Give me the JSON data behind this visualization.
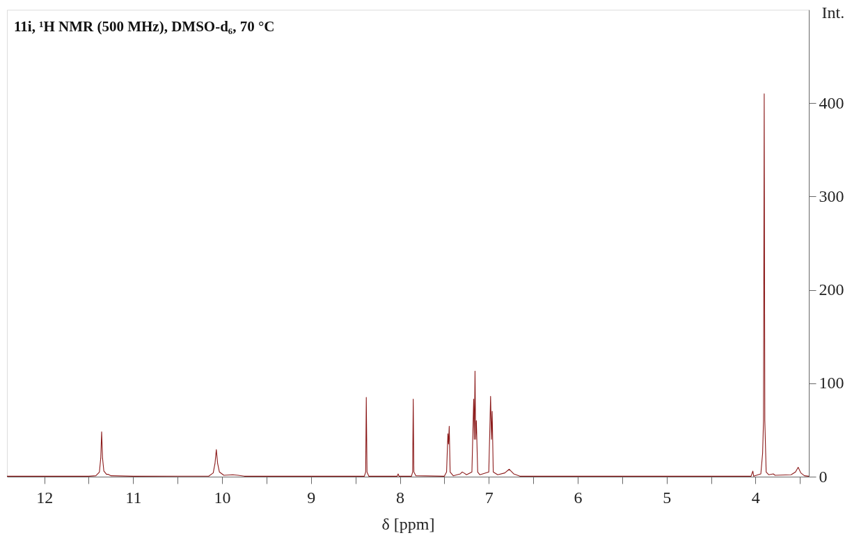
{
  "chart_data": {
    "type": "line",
    "title": "11i, ¹H NMR (500 MHz), DMSO-d₆, 70 °C",
    "xlabel": "δ [ppm]",
    "ylabel": "Int.",
    "xlim": [
      12.42,
      3.4
    ],
    "ylim": [
      0,
      500
    ],
    "xticks": [
      12,
      {
        "value": 11.5,
        "label": null
      },
      11,
      {
        "value": 10.5,
        "label": null
      },
      10,
      {
        "value": 9.5,
        "label": null
      },
      9,
      {
        "value": 8.5,
        "label": null
      },
      8,
      {
        "value": 7.5,
        "label": null
      },
      7,
      {
        "value": 6.5,
        "label": null
      },
      6,
      {
        "value": 5.5,
        "label": null
      },
      5,
      {
        "value": 4.5,
        "label": null
      },
      4,
      {
        "value": 3.5,
        "label": null
      }
    ],
    "yticks": [
      0,
      100,
      200,
      300,
      400
    ],
    "grid": false,
    "marker": "none",
    "line_style": "solid",
    "series": [
      {
        "color": "#8b1a1a",
        "x": [
          12.42,
          11.5,
          11.42,
          11.38,
          11.365,
          11.355,
          11.345,
          11.33,
          11.3,
          11.28,
          11.25,
          11.0,
          10.15,
          10.1,
          10.08,
          10.065,
          10.05,
          10.03,
          9.98,
          9.88,
          9.82,
          9.75,
          8.4,
          8.385,
          8.378,
          8.37,
          8.35,
          8.03,
          8.02,
          8.01,
          7.87,
          7.857,
          7.85,
          7.843,
          7.82,
          7.5,
          7.475,
          7.46,
          7.453,
          7.445,
          7.435,
          7.4,
          7.32,
          7.3,
          7.28,
          7.25,
          7.19,
          7.17,
          7.163,
          7.155,
          7.148,
          7.14,
          7.125,
          7.1,
          7.0,
          6.98,
          6.97,
          6.962,
          6.95,
          6.9,
          6.82,
          6.77,
          6.72,
          6.65,
          4.05,
          4.03,
          4.02,
          3.94,
          3.92,
          3.91,
          3.902,
          3.895,
          3.88,
          3.85,
          3.8,
          3.78,
          3.6,
          3.55,
          3.52,
          3.49,
          3.45,
          3.4
        ],
        "values": [
          0.5,
          0.5,
          1,
          5,
          20,
          48,
          20,
          6,
          2.5,
          2.5,
          1,
          0.5,
          0.6,
          4,
          14,
          29,
          14,
          5,
          1.5,
          2,
          1.5,
          0.5,
          0.5,
          5,
          85,
          5,
          0.5,
          0.5,
          3,
          0.5,
          0.5,
          5,
          83,
          5,
          1,
          0.5,
          5,
          46,
          35,
          54,
          5,
          1,
          3,
          5,
          4,
          2,
          5,
          83,
          40,
          113,
          40,
          60,
          5,
          2,
          5,
          86,
          40,
          70,
          5,
          2,
          4,
          8,
          3,
          0.5,
          0.5,
          6,
          0.5,
          3,
          25,
          60,
          410,
          60,
          5,
          2,
          3,
          1.5,
          2,
          5,
          10,
          4,
          1,
          0.5
        ]
      }
    ]
  }
}
